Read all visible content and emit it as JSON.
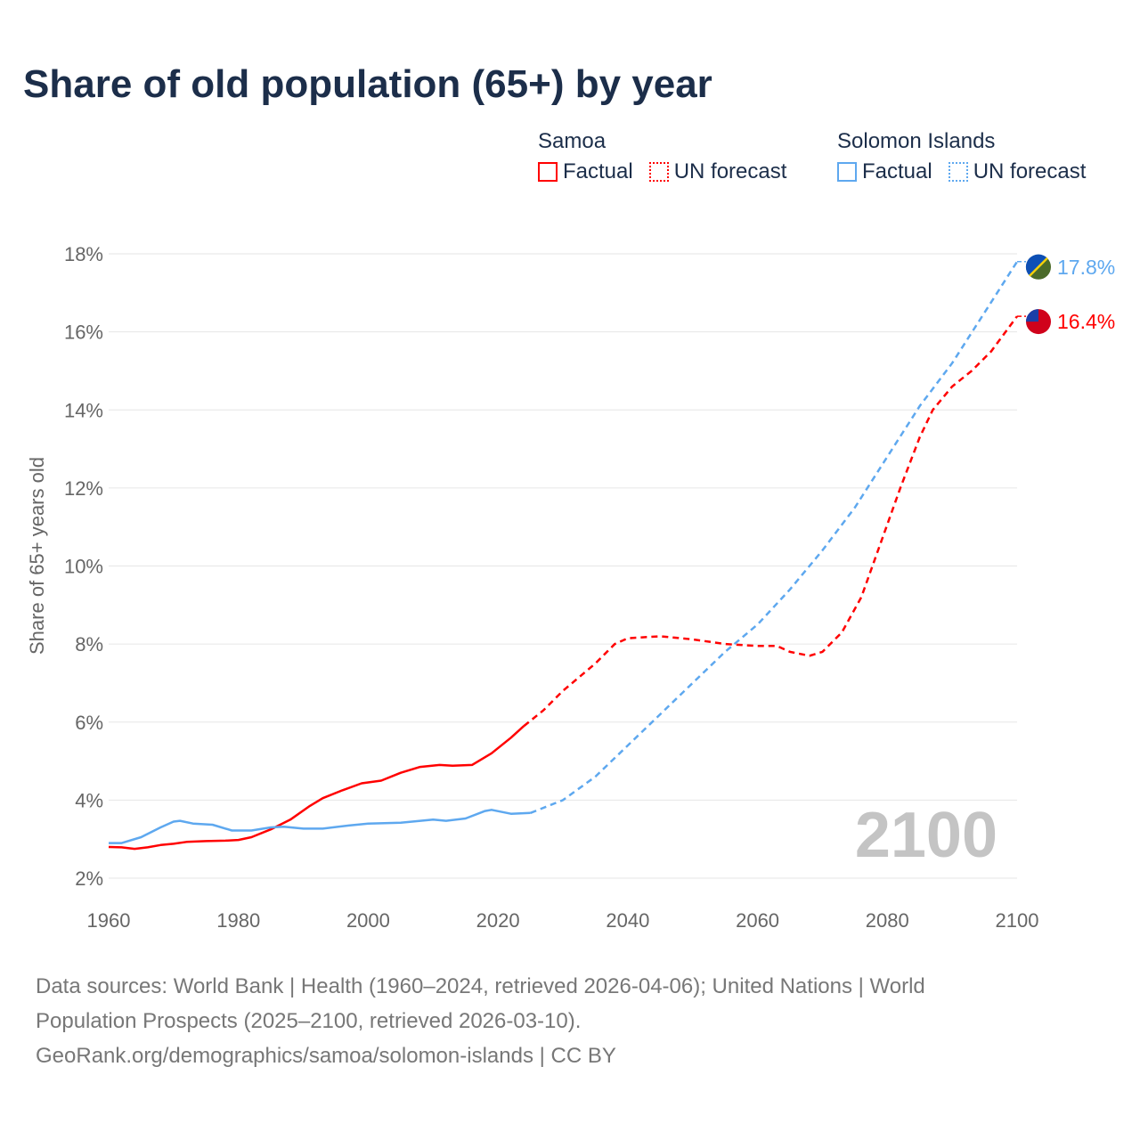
{
  "title": "Share of old population (65+) by year",
  "legend": [
    {
      "group": "Samoa",
      "color": "#ff0000",
      "factual": "Factual",
      "forecast": "UN forecast"
    },
    {
      "group": "Solomon Islands",
      "color": "#5ea8ef",
      "factual": "Factual",
      "forecast": "UN forecast"
    }
  ],
  "footer": {
    "line1": "Data sources: World Bank | Health (1960–2024, retrieved 2026-04-06); United Nations | World",
    "line2": "Population Prospects (2025–2100, retrieved 2026-03-10).",
    "line3": "GeoRank.org/demographics/samoa/solomon-islands | CC BY"
  },
  "chart_data": {
    "type": "line",
    "title": "Share of old population (65+) by year",
    "xlabel": "",
    "ylabel": "Share of 65+ years old",
    "xlim": [
      1960,
      2100
    ],
    "ylim": [
      2,
      18
    ],
    "xticks": [
      1960,
      1980,
      2000,
      2020,
      2040,
      2060,
      2080,
      2100
    ],
    "yticks": [
      2,
      4,
      6,
      8,
      10,
      12,
      14,
      16,
      18
    ],
    "ytick_labels": [
      "2%",
      "4%",
      "6%",
      "8%",
      "10%",
      "12%",
      "14%",
      "16%",
      "18%"
    ],
    "year_label": "2100",
    "grid": true,
    "series": [
      {
        "name": "Samoa",
        "color": "#ff0000",
        "end_label": "16.4%",
        "factual": [
          [
            1960,
            2.8
          ],
          [
            1962,
            2.79
          ],
          [
            1964,
            2.75
          ],
          [
            1966,
            2.79
          ],
          [
            1968,
            2.85
          ],
          [
            1970,
            2.88
          ],
          [
            1972,
            2.93
          ],
          [
            1975,
            2.95
          ],
          [
            1978,
            2.96
          ],
          [
            1980,
            2.98
          ],
          [
            1982,
            3.05
          ],
          [
            1985,
            3.25
          ],
          [
            1988,
            3.5
          ],
          [
            1991,
            3.85
          ],
          [
            1993,
            4.05
          ],
          [
            1996,
            4.25
          ],
          [
            1999,
            4.43
          ],
          [
            2002,
            4.5
          ],
          [
            2005,
            4.7
          ],
          [
            2008,
            4.85
          ],
          [
            2011,
            4.9
          ],
          [
            2013,
            4.88
          ],
          [
            2016,
            4.9
          ],
          [
            2019,
            5.2
          ],
          [
            2022,
            5.6
          ],
          [
            2024,
            5.9
          ]
        ],
        "forecast": [
          [
            2024,
            5.9
          ],
          [
            2027,
            6.3
          ],
          [
            2030,
            6.8
          ],
          [
            2035,
            7.5
          ],
          [
            2038,
            8.0
          ],
          [
            2040,
            8.15
          ],
          [
            2045,
            8.2
          ],
          [
            2050,
            8.12
          ],
          [
            2055,
            8.0
          ],
          [
            2060,
            7.95
          ],
          [
            2063,
            7.95
          ],
          [
            2065,
            7.8
          ],
          [
            2068,
            7.7
          ],
          [
            2070,
            7.8
          ],
          [
            2073,
            8.3
          ],
          [
            2076,
            9.2
          ],
          [
            2079,
            10.6
          ],
          [
            2082,
            12.0
          ],
          [
            2085,
            13.3
          ],
          [
            2087,
            14.0
          ],
          [
            2090,
            14.6
          ],
          [
            2093,
            15.0
          ],
          [
            2096,
            15.5
          ],
          [
            2100,
            16.4
          ]
        ]
      },
      {
        "name": "Solomon Islands",
        "color": "#5ea8ef",
        "end_label": "17.8%",
        "factual": [
          [
            1960,
            2.9
          ],
          [
            1962,
            2.9
          ],
          [
            1965,
            3.05
          ],
          [
            1968,
            3.3
          ],
          [
            1970,
            3.45
          ],
          [
            1971,
            3.47
          ],
          [
            1973,
            3.4
          ],
          [
            1976,
            3.37
          ],
          [
            1979,
            3.22
          ],
          [
            1982,
            3.22
          ],
          [
            1985,
            3.3
          ],
          [
            1987,
            3.32
          ],
          [
            1990,
            3.27
          ],
          [
            1993,
            3.27
          ],
          [
            1997,
            3.35
          ],
          [
            2000,
            3.4
          ],
          [
            2005,
            3.42
          ],
          [
            2010,
            3.5
          ],
          [
            2012,
            3.47
          ],
          [
            2015,
            3.53
          ],
          [
            2018,
            3.72
          ],
          [
            2019,
            3.75
          ],
          [
            2022,
            3.65
          ],
          [
            2025,
            3.67
          ]
        ],
        "forecast": [
          [
            2025,
            3.67
          ],
          [
            2030,
            4.0
          ],
          [
            2035,
            4.6
          ],
          [
            2040,
            5.4
          ],
          [
            2045,
            6.2
          ],
          [
            2050,
            7.0
          ],
          [
            2055,
            7.8
          ],
          [
            2060,
            8.5
          ],
          [
            2065,
            9.4
          ],
          [
            2070,
            10.4
          ],
          [
            2075,
            11.5
          ],
          [
            2080,
            12.8
          ],
          [
            2085,
            14.1
          ],
          [
            2090,
            15.2
          ],
          [
            2095,
            16.5
          ],
          [
            2100,
            17.8
          ]
        ]
      }
    ]
  }
}
